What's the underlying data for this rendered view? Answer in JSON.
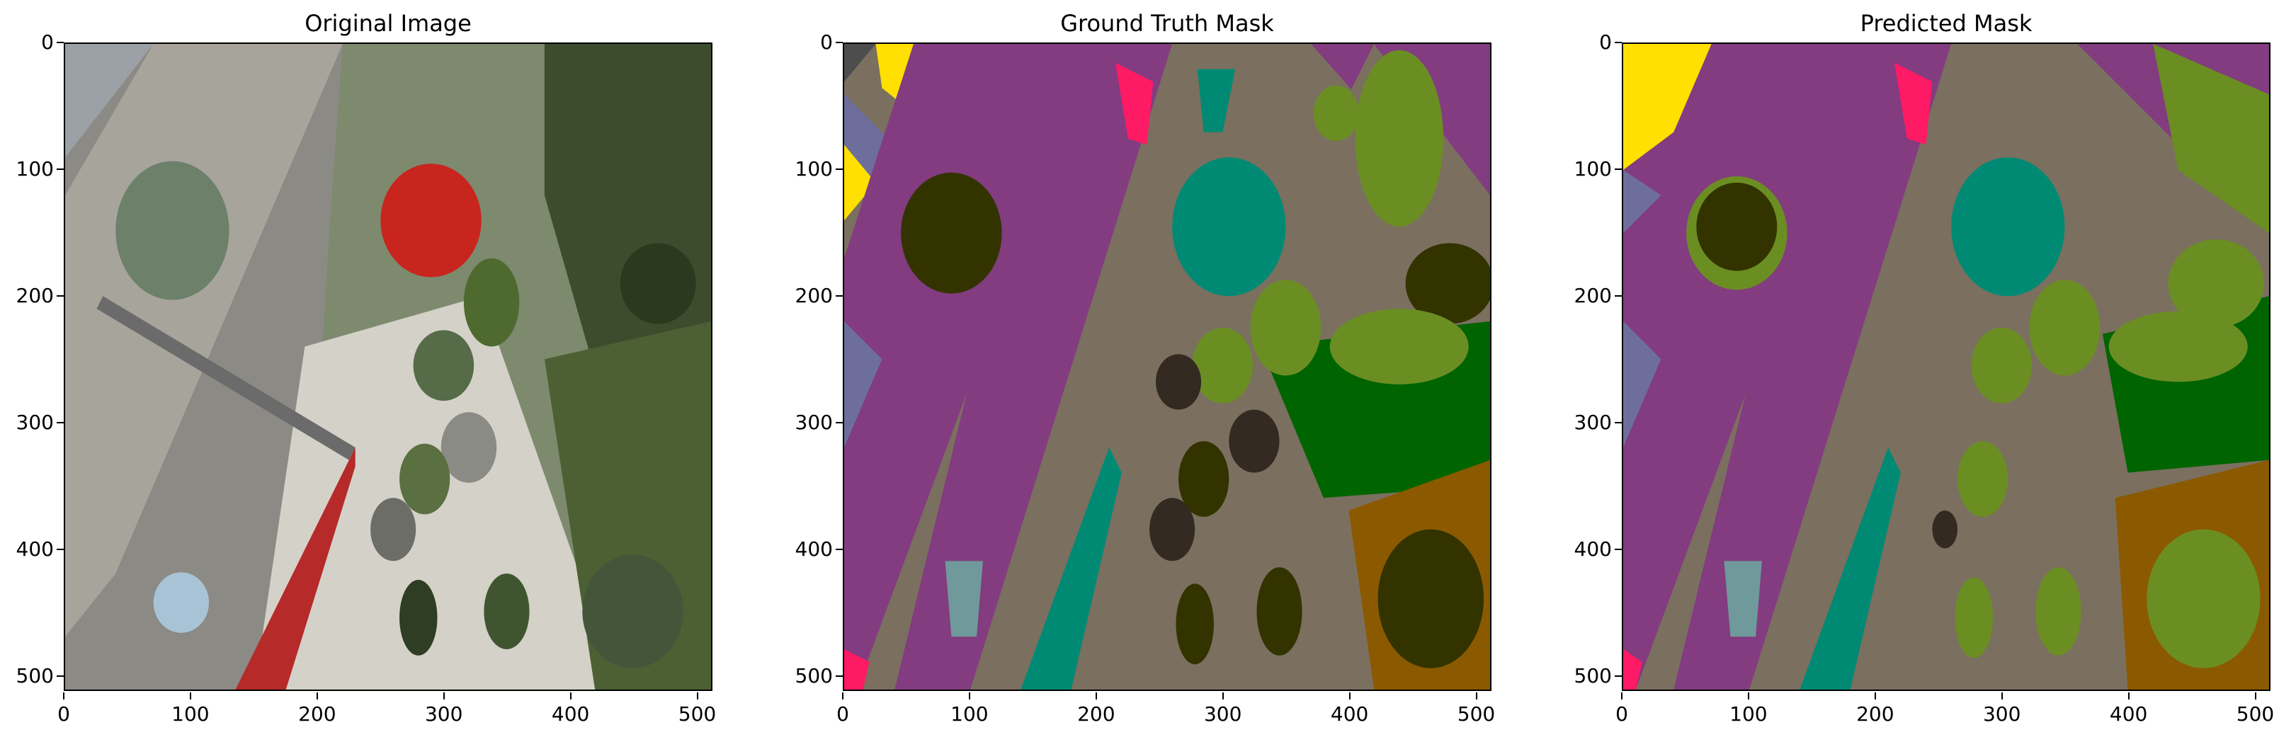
{
  "panels": [
    {
      "title": "Original Image"
    },
    {
      "title": "Ground Truth Mask"
    },
    {
      "title": "Predicted Mask"
    }
  ],
  "axis": {
    "x_ticks": [
      "0",
      "100",
      "200",
      "300",
      "400",
      "500"
    ],
    "y_ticks": [
      "0",
      "100",
      "200",
      "300",
      "400",
      "500"
    ],
    "range": [
      0,
      512
    ]
  },
  "class_colors": {
    "paved_area": "#7b6f60",
    "dirt": "#823c7f",
    "grass": "#006400",
    "gravel": "#7b6f60",
    "vegetation": "#6b8e23",
    "tree": "#333300",
    "rocks": "#332a22",
    "roof": "#008a74",
    "person": "#ff1a66",
    "obstacle": "#6e6e9c",
    "vehicle": "#8b5a00",
    "ar_marker": "#70999b",
    "fence": "#ffe000"
  }
}
